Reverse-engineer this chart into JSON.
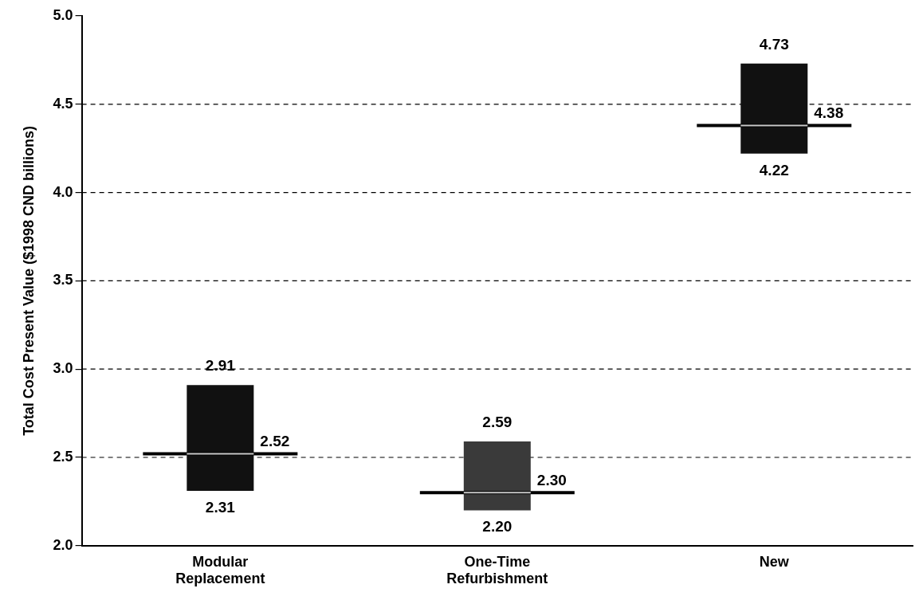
{
  "chart_data": {
    "type": "box",
    "ylabel": "Total Cost Present Value ($1998 CND billions)",
    "categories": [
      "Modular Replacement",
      "One-Time Refurbishment",
      "New"
    ],
    "boxes": [
      {
        "low": 2.31,
        "q1": 2.31,
        "median": 2.52,
        "q3": 2.91,
        "high": 2.91
      },
      {
        "low": 2.2,
        "q1": 2.2,
        "median": 2.3,
        "q3": 2.59,
        "high": 2.59
      },
      {
        "low": 4.22,
        "q1": 4.22,
        "median": 4.38,
        "q3": 4.73,
        "high": 4.73
      }
    ],
    "colors": [
      "#111111",
      "#3a3a3a",
      "#111111"
    ],
    "ylim": [
      2.0,
      5.0
    ],
    "yticks": [
      {
        "value": 2.0,
        "label": "2.0"
      },
      {
        "value": 2.5,
        "label": "2.5"
      },
      {
        "value": 3.0,
        "label": "3.0"
      },
      {
        "value": 3.5,
        "label": "3.5"
      },
      {
        "value": 4.0,
        "label": "4.0"
      },
      {
        "value": 4.5,
        "label": "4.5"
      },
      {
        "value": 5.0,
        "label": "5.0"
      }
    ],
    "annotations": [
      {
        "text": "2.91",
        "x": "Modular Replacement",
        "y": 2.91
      },
      {
        "text": "2.52",
        "x": "Modular Replacement",
        "y": 2.52
      },
      {
        "text": "2.31",
        "x": "Modular Replacement",
        "y": 2.31
      },
      {
        "text": "2.59",
        "x": "One-Time Refurbishment",
        "y": 2.59
      },
      {
        "text": "2.30",
        "x": "One-Time Refurbishment",
        "y": 2.3
      },
      {
        "text": "2.20",
        "x": "One-Time Refurbishment",
        "y": 2.2
      },
      {
        "text": "4.73",
        "x": "New",
        "y": 4.73
      },
      {
        "text": "4.38",
        "x": "New",
        "y": 4.38
      },
      {
        "text": "4.22",
        "x": "New",
        "y": 4.22
      }
    ],
    "grid": "y",
    "line_style": "dashed"
  }
}
